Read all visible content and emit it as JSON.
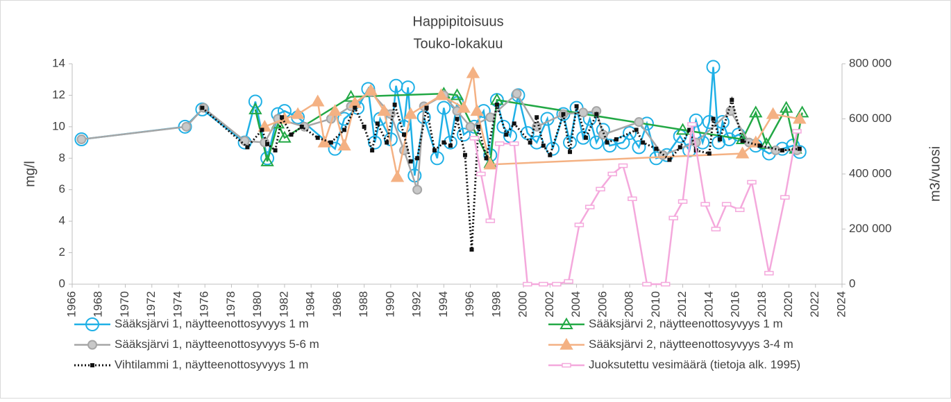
{
  "chart_data": {
    "type": "line",
    "title": "Happipitoisuus",
    "subtitle": "Touko-lokakuu",
    "y_label": "mg/l",
    "y2_label": "m3/vuosi",
    "xlim": [
      1966,
      2024
    ],
    "xticks": [
      1966,
      1968,
      1970,
      1972,
      1974,
      1976,
      1978,
      1980,
      1982,
      1984,
      1986,
      1988,
      1990,
      1992,
      1994,
      1996,
      1998,
      2000,
      2002,
      2004,
      2006,
      2008,
      2010,
      2012,
      2014,
      2016,
      2018,
      2020,
      2022,
      2024
    ],
    "ylim": [
      0,
      14
    ],
    "yticks": [
      0,
      2,
      4,
      6,
      8,
      10,
      12,
      14
    ],
    "y2lim": [
      0,
      800000
    ],
    "y2ticks": [
      {
        "value": 0,
        "label": "0"
      },
      {
        "value": 200000,
        "label": "200 000"
      },
      {
        "value": 400000,
        "label": "400 000"
      },
      {
        "value": 600000,
        "label": "600 000"
      },
      {
        "value": 800000,
        "label": "800 000"
      }
    ],
    "series": [
      {
        "name": "Sääksjärvi 1, näytteenottosyvyys 1 m",
        "color": "#1fb0e6",
        "marker": "circle",
        "line": "solid",
        "x": [
          1966.7,
          1974.5,
          1975.8,
          1979,
          1979.8,
          1980.7,
          1981.5,
          1982,
          1983,
          1985.8,
          1986.5,
          1987.5,
          1988.3,
          1988.8,
          1989.2,
          1990,
          1990.4,
          1991,
          1991.3,
          1991.8,
          1992.5,
          1993.5,
          1994,
          1994.5,
          1995,
          1995.5,
          1996.3,
          1997,
          1997.5,
          1998,
          1998.5,
          1999,
          1999.6,
          2000.3,
          2001,
          2001.8,
          2002.2,
          2003,
          2003.5,
          2004,
          2004.5,
          2005,
          2005.5,
          2006,
          2006.5,
          2007.5,
          2008,
          2008.7,
          2009.3,
          2010,
          2010.8,
          2011.8,
          2012.5,
          2013,
          2013.5,
          2014,
          2014.3,
          2014.7,
          2015,
          2015.5,
          2016.2,
          2017.5,
          2018.5,
          2019.5,
          2020.3,
          2020.8
        ],
        "values": [
          9.2,
          10.0,
          11.1,
          9.0,
          11.6,
          8.0,
          10.8,
          11.0,
          10.6,
          8.6,
          10.5,
          11.2,
          12.4,
          9.0,
          10.5,
          9.2,
          12.6,
          10.0,
          12.5,
          6.9,
          10.6,
          8.0,
          11.2,
          9.0,
          11.5,
          9.5,
          10.0,
          11.0,
          8.2,
          11.7,
          10.0,
          9.4,
          12.0,
          9.6,
          9.0,
          10.5,
          8.6,
          10.8,
          9.0,
          11.2,
          9.3,
          10.5,
          9.0,
          9.8,
          8.8,
          9.0,
          9.6,
          8.7,
          10.2,
          8.0,
          8.2,
          9.4,
          8.5,
          10.4,
          9.0,
          10.3,
          13.8,
          9.0,
          10.3,
          9.2,
          9.5,
          8.8,
          8.3,
          8.6,
          8.8,
          8.4
        ]
      },
      {
        "name": "Sääksjärvi 2, näytteenottosyvyys 1 m",
        "color": "#22a845",
        "marker": "triangle",
        "line": "solid",
        "x": [
          1979.8,
          1980.7,
          1981.5,
          1982,
          1987,
          1994,
          1995,
          1997.5,
          1998,
          2012,
          2016.5,
          2017.5,
          2018.3,
          2019.8,
          2020.5,
          2021
        ],
        "values": [
          11.1,
          7.8,
          10.2,
          9.3,
          11.9,
          12.1,
          12.0,
          7.7,
          11.7,
          9.8,
          9.2,
          10.9,
          8.9,
          11.2,
          8.6,
          10.9
        ]
      },
      {
        "name": "Sääksjärvi 1, näytteenottosyvyys 5-6 m",
        "color": "#a6a6a6",
        "marker": "circle-filled",
        "line": "solid",
        "x": [
          1966.7,
          1974.6,
          1975.9,
          1979,
          1980.5,
          1981.5,
          1983.5,
          1985.5,
          1987,
          1988.5,
          1990,
          1991,
          1992,
          1992.5,
          1994,
          1995,
          1996,
          1997.5,
          1999.5,
          2001,
          2003,
          2004.5,
          2005.5,
          2006,
          2008.7,
          2010.5,
          2013,
          2015.6,
          2017,
          2019,
          2020.6
        ],
        "values": [
          9.2,
          10.0,
          11.2,
          9.1,
          9.0,
          10.5,
          10.0,
          10.5,
          11.3,
          12.2,
          10.8,
          8.5,
          6.0,
          11.3,
          12.0,
          11.0,
          10.0,
          10.6,
          12.1,
          10.0,
          10.8,
          10.9,
          11.0,
          9.5,
          10.3,
          8.2,
          9.0,
          11.0,
          9.0,
          8.5,
          8.5
        ]
      },
      {
        "name": "Sääksjärvi 2, näytteenottosyvyys 3-4 m",
        "color": "#f4b183",
        "marker": "triangle-filled",
        "line": "solid",
        "x": [
          1980.5,
          1982,
          1983,
          1984.5,
          1985,
          1985.8,
          1986.5,
          1987.3,
          1988.5,
          1989.5,
          1990.5,
          1991.5,
          1993.8,
          1995.5,
          1996.2,
          1996.5,
          1997.5,
          2016.5,
          2017.5,
          2018.8,
          2020.8
        ],
        "values": [
          10.0,
          10.5,
          10.8,
          11.6,
          9.0,
          11.0,
          8.8,
          11.5,
          12.3,
          11.0,
          6.8,
          10.8,
          12.0,
          11.2,
          13.4,
          11.0,
          7.6,
          8.3,
          9.0,
          10.8,
          10.5
        ]
      },
      {
        "name": "Vihtilammi 1, näytteenottosyvyys 1 m",
        "color": "#111111",
        "marker": "square",
        "line": "dotted",
        "x": [
          1975.8,
          1979.2,
          1980.3,
          1980.7,
          1981.3,
          1981.8,
          1982.5,
          1983.3,
          1984.5,
          1985.5,
          1986.5,
          1987.3,
          1988,
          1988.6,
          1989,
          1989.7,
          1990.3,
          1991,
          1991.5,
          1992,
          1992.7,
          1993.3,
          1994,
          1994.5,
          1995,
          1995.6,
          1996.1,
          1996.6,
          1997.2,
          1998,
          1998.7,
          1999.3,
          2000.5,
          2001,
          2001.5,
          2002,
          2003,
          2003.5,
          2004,
          2004.7,
          2005.5,
          2006.3,
          2007,
          2008.5,
          2009,
          2010,
          2011,
          2011.8,
          2012.5,
          2013,
          2014,
          2014.3,
          2014.8,
          2015.7,
          2016.5,
          2017.8,
          2019.5,
          2020.8
        ],
        "values": [
          11.2,
          8.7,
          9.8,
          8.9,
          8.5,
          10.6,
          9.5,
          10.0,
          9.3,
          9.0,
          9.8,
          11.2,
          10.0,
          8.5,
          10.2,
          9.0,
          11.4,
          9.5,
          7.8,
          8.0,
          11.2,
          8.5,
          9.0,
          8.8,
          10.5,
          8.2,
          2.2,
          10.0,
          8.0,
          11.4,
          9.5,
          10.2,
          9.0,
          10.6,
          8.8,
          8.2,
          10.8,
          8.4,
          11.3,
          9.3,
          10.8,
          9.0,
          9.2,
          9.8,
          9.0,
          8.6,
          7.9,
          8.7,
          9.8,
          8.5,
          8.3,
          10.5,
          9.2,
          11.7,
          9.1,
          8.8,
          8.5,
          8.6
        ]
      },
      {
        "name": "Juoksutettu vesimäärä (tietoja alk. 1995)",
        "color": "#f4a8dc",
        "marker": "rect",
        "line": "solid",
        "axis": "y2",
        "x": [
          1996.3,
          1996.8,
          1997.5,
          1998.2,
          1999.3,
          2000.3,
          2001.5,
          2002.5,
          2003.4,
          2004.2,
          2005,
          2005.8,
          2006.7,
          2007.5,
          2008.2,
          2009.3,
          2010.7,
          2011.3,
          2012,
          2012.7,
          2013.7,
          2014.5,
          2015.3,
          2016.3,
          2017.2,
          2018.5,
          2019.7,
          2020.6
        ],
        "values": [
          530000,
          400000,
          230000,
          510000,
          510000,
          0,
          0,
          0,
          10000,
          215000,
          280000,
          345000,
          400000,
          430000,
          310000,
          0,
          0,
          240000,
          300000,
          580000,
          290000,
          200000,
          290000,
          270000,
          370000,
          40000,
          315000,
          555000
        ]
      }
    ]
  }
}
